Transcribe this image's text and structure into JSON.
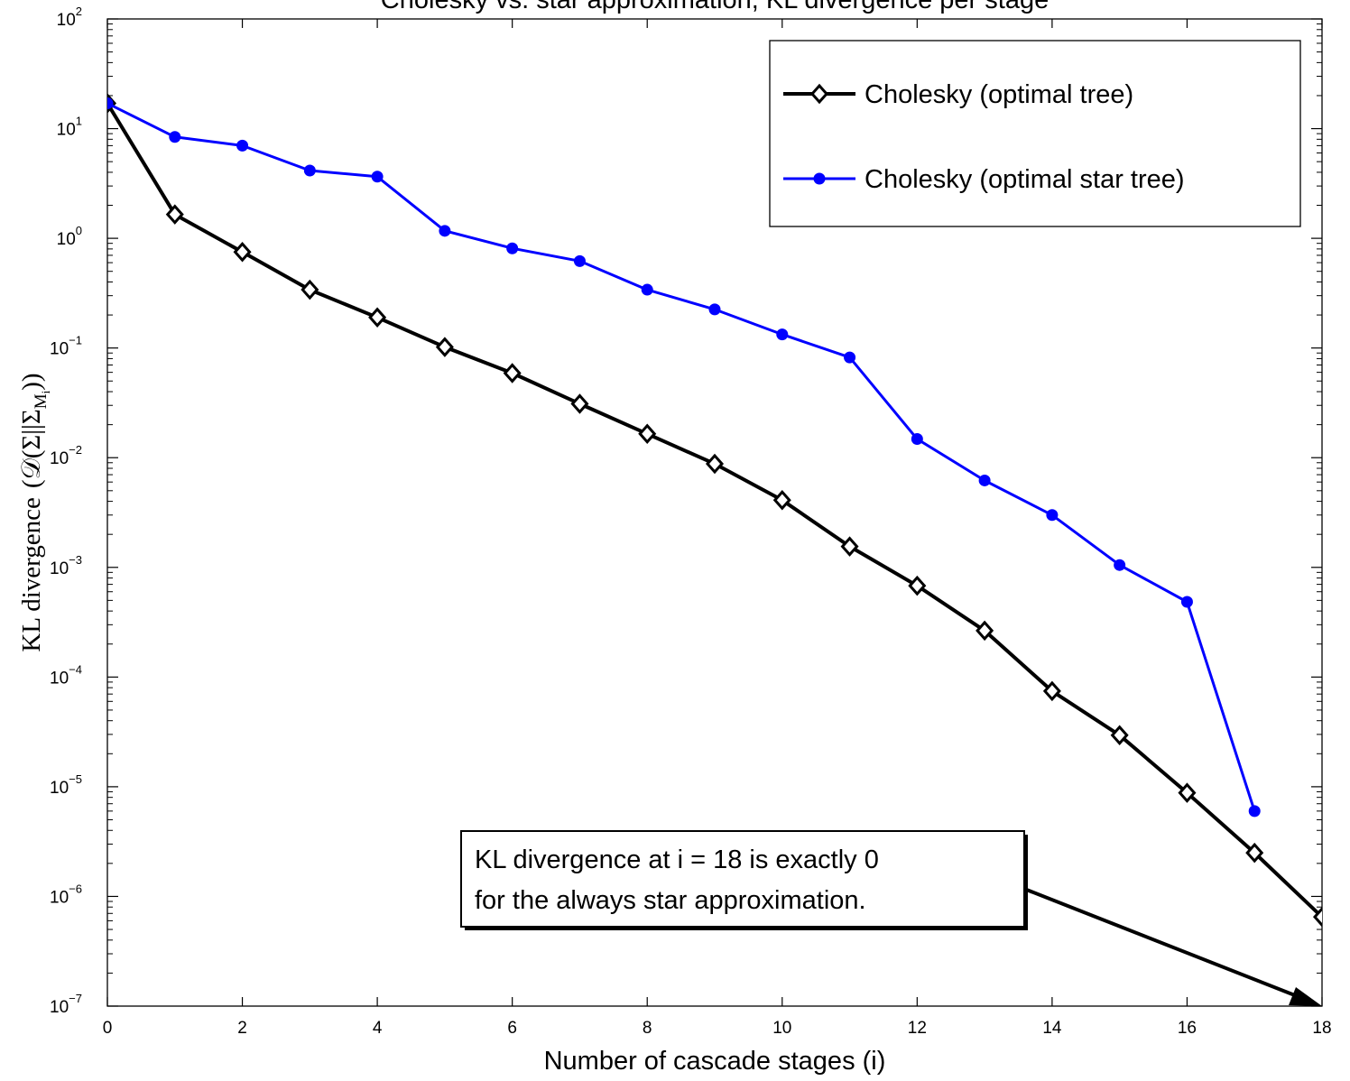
{
  "chart_data": {
    "type": "line",
    "title": "Cholesky vs. star approximation, KL divergence per stage",
    "xlabel": "Number of cascade stages (i)",
    "ylabel_prefix": "KL divergence",
    "ylabel_math": "(𝒟(Σ||Σ",
    "ylabel_sub": "M",
    "ylabel_subsub": "i",
    "ylabel_close": "))",
    "xlim": [
      0,
      18
    ],
    "ylim": [
      1e-07,
      100
    ],
    "yscale": "log",
    "grid": false,
    "legend_position": "top-right",
    "x_ticks": [
      0,
      2,
      4,
      6,
      8,
      10,
      12,
      14,
      16,
      18
    ],
    "y_ticks": [
      {
        "exp": -7,
        "base": "10",
        "power": "−7"
      },
      {
        "exp": -6,
        "base": "10",
        "power": "−6"
      },
      {
        "exp": -5,
        "base": "10",
        "power": "−5"
      },
      {
        "exp": -4,
        "base": "10",
        "power": "−4"
      },
      {
        "exp": -3,
        "base": "10",
        "power": "−3"
      },
      {
        "exp": -2,
        "base": "10",
        "power": "−2"
      },
      {
        "exp": -1,
        "base": "10",
        "power": "−1"
      },
      {
        "exp": 0,
        "base": "10",
        "power": "0"
      },
      {
        "exp": 1,
        "base": "10",
        "power": "1"
      },
      {
        "exp": 2,
        "base": "10",
        "power": "2"
      }
    ],
    "series": [
      {
        "name": "Cholesky (optimal tree)",
        "color": "#000000",
        "marker": "diamond",
        "x": [
          0,
          1,
          2,
          3,
          4,
          5,
          6,
          7,
          8,
          9,
          10,
          11,
          12,
          13,
          14,
          15,
          16,
          17,
          18
        ],
        "y": [
          17,
          1.65,
          0.75,
          0.34,
          0.19,
          0.102,
          0.059,
          0.031,
          0.0165,
          0.0088,
          0.0041,
          0.00155,
          0.00068,
          0.000265,
          7.45e-05,
          2.95e-05,
          8.8e-06,
          2.5e-06,
          6.5e-07
        ]
      },
      {
        "name": "Cholesky (optimal star tree)",
        "color": "#0000ff",
        "marker": "circle",
        "x": [
          0,
          1,
          2,
          3,
          4,
          5,
          6,
          7,
          8,
          9,
          10,
          11,
          12,
          13,
          14,
          15,
          16,
          17
        ],
        "y": [
          17,
          8.4,
          7.0,
          4.15,
          3.65,
          1.17,
          0.81,
          0.62,
          0.34,
          0.225,
          0.133,
          0.082,
          0.0148,
          0.0062,
          0.003,
          0.00105,
          0.000485,
          6e-06
        ]
      }
    ],
    "annotation": {
      "lines": [
        "KL divergence at i = 18 is exactly 0",
        "for the always star approximation."
      ],
      "arrow_to": {
        "x": 18,
        "y": 1e-07
      }
    }
  }
}
